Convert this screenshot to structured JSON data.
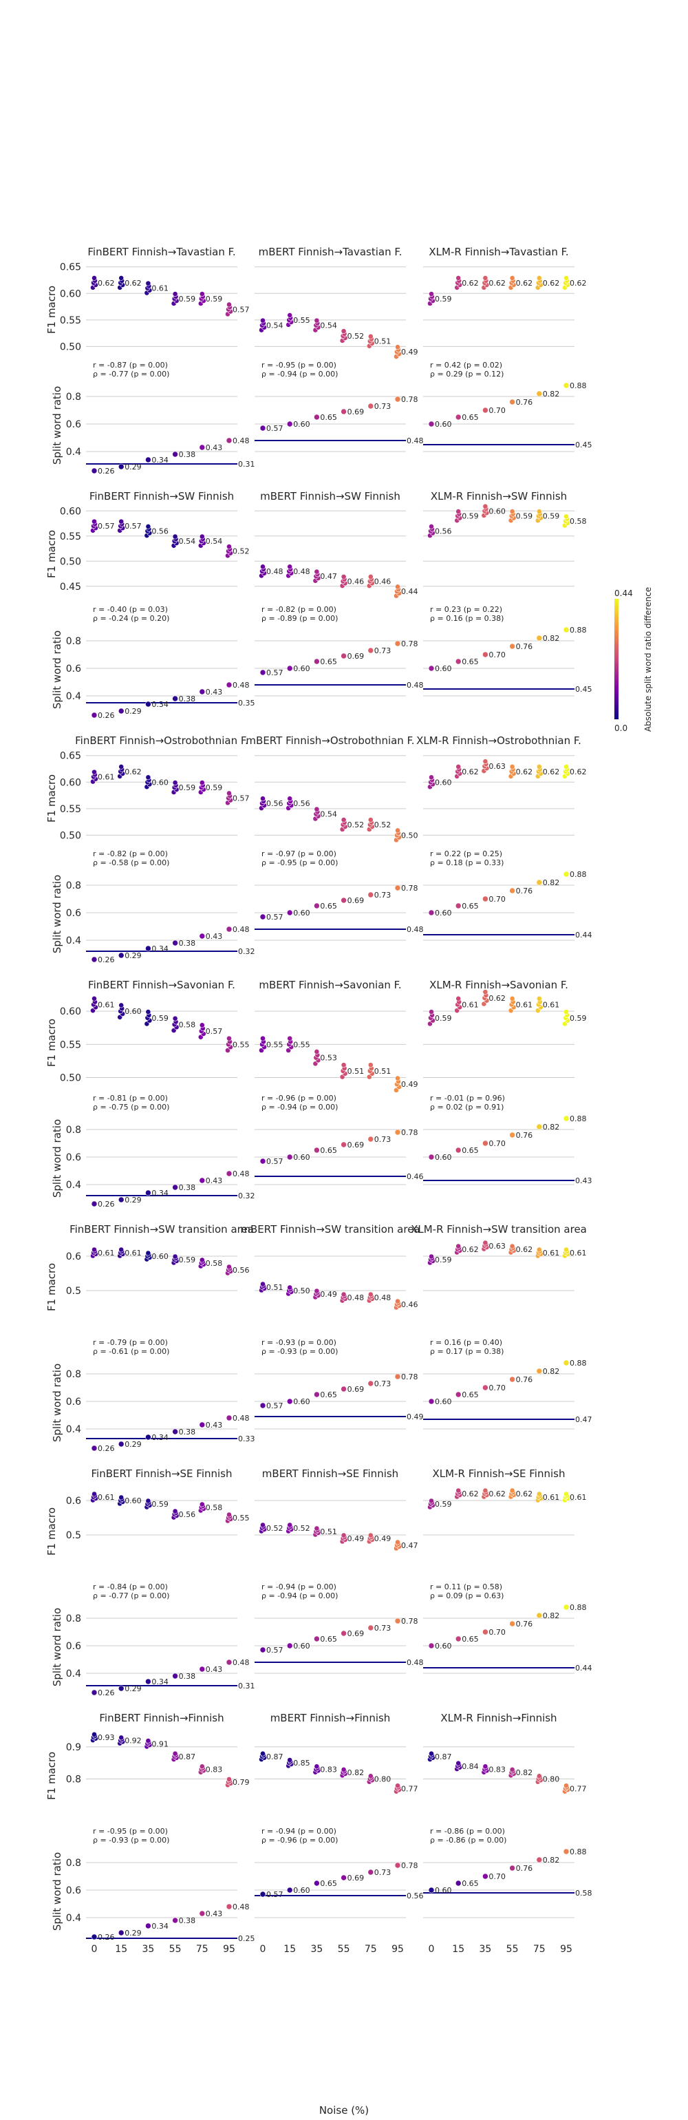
{
  "figure": {
    "xlabel": "Noise (%)",
    "colorbar": {
      "label": "Absolute split word ratio difference",
      "min_label": "0.0",
      "max_label": "0.44",
      "min": 0.0,
      "max": 0.44
    },
    "colors": {
      "grid": "#cccccc",
      "baseline": "#0d0887",
      "text": "#262626"
    }
  },
  "chart_data": {
    "type": "scatter",
    "x": [
      0,
      15,
      35,
      55,
      75,
      95
    ],
    "x_tick_labels": [
      "0",
      "15",
      "35",
      "55",
      "75",
      "95"
    ],
    "y_labels": {
      "f1": "F1 macro",
      "split": "Split word ratio"
    },
    "split_ylim": [
      0.28,
      0.9
    ],
    "split_yticks": [
      0.4,
      0.6,
      0.8
    ],
    "split_ytick_labels": [
      "0.4",
      "0.6",
      "0.8"
    ],
    "models": [
      "FinBERT",
      "mBERT",
      "XLM-R"
    ],
    "split_values": {
      "FinBERT": [
        0.26,
        0.29,
        0.34,
        0.38,
        0.43,
        0.48
      ],
      "mBERT": [
        0.57,
        0.6,
        0.65,
        0.69,
        0.73,
        0.78
      ],
      "XLM-R": [
        0.6,
        0.65,
        0.7,
        0.76,
        0.82,
        0.88
      ]
    },
    "split_labels": {
      "FinBERT": [
        "0.26",
        "0.29",
        "0.34",
        "0.38",
        "0.43",
        "0.48"
      ],
      "mBERT": [
        "0.57",
        "0.60",
        "0.65",
        "0.69",
        "0.73",
        "0.78"
      ],
      "XLM-R": [
        "0.60",
        "0.65",
        "0.70",
        "0.76",
        "0.82",
        "0.88"
      ]
    },
    "rows": [
      {
        "f1_ylim": [
          0.485,
          0.66
        ],
        "f1_yticks": [
          0.5,
          0.55,
          0.6,
          0.65
        ],
        "f1_ytick_labels": [
          "0.50",
          "0.55",
          "0.60",
          "0.65"
        ],
        "panels": [
          {
            "title": "FinBERT Finnish→Tavastian F.",
            "f1": [
              0.62,
              0.62,
              0.61,
              0.59,
              0.59,
              0.57
            ],
            "f1_labels": [
              "0.62",
              "0.62",
              "0.61",
              "0.59",
              "0.59",
              "0.57"
            ],
            "stats": [
              "r = -0.87 (p = 0.00)",
              "ρ = -0.77 (p = 0.00)"
            ],
            "baseline": 0.31,
            "baseline_label": "0.31"
          },
          {
            "title": "mBERT Finnish→Tavastian F.",
            "f1": [
              0.54,
              0.55,
              0.54,
              0.52,
              0.51,
              0.49
            ],
            "f1_labels": [
              "0.54",
              "0.55",
              "0.54",
              "0.52",
              "0.51",
              "0.49"
            ],
            "stats": [
              "r = -0.95 (p = 0.00)",
              "ρ = -0.94 (p = 0.00)"
            ],
            "baseline": 0.48,
            "baseline_label": "0.48"
          },
          {
            "title": "XLM-R Finnish→Tavastian F.",
            "f1": [
              0.59,
              0.62,
              0.62,
              0.62,
              0.62,
              0.62
            ],
            "f1_labels": [
              "0.59",
              "0.62",
              "0.62",
              "0.62",
              "0.62",
              "0.62"
            ],
            "stats": [
              "r = 0.42 (p = 0.02)",
              "ρ = 0.29 (p = 0.12)"
            ],
            "baseline": 0.45,
            "baseline_label": "0.45"
          }
        ]
      },
      {
        "f1_ylim": [
          0.425,
          0.61
        ],
        "f1_yticks": [
          0.45,
          0.5,
          0.55,
          0.6
        ],
        "f1_ytick_labels": [
          "0.45",
          "0.50",
          "0.55",
          "0.60"
        ],
        "panels": [
          {
            "title": "FinBERT Finnish→SW Finnish",
            "f1": [
              0.57,
              0.57,
              0.56,
              0.54,
              0.54,
              0.52
            ],
            "f1_labels": [
              "0.57",
              "0.57",
              "0.56",
              "0.54",
              "0.54",
              "0.52"
            ],
            "stats": [
              "r = -0.40 (p = 0.03)",
              "ρ = -0.24 (p = 0.20)"
            ],
            "baseline": 0.35,
            "baseline_label": "0.35"
          },
          {
            "title": "mBERT Finnish→SW Finnish",
            "f1": [
              0.48,
              0.48,
              0.47,
              0.46,
              0.46,
              0.44
            ],
            "f1_labels": [
              "0.48",
              "0.48",
              "0.47",
              "0.46",
              "0.46",
              "0.44"
            ],
            "stats": [
              "r = -0.82 (p = 0.00)",
              "ρ = -0.89 (p = 0.00)"
            ],
            "baseline": 0.48,
            "baseline_label": "0.48"
          },
          {
            "title": "XLM-R Finnish→SW Finnish",
            "f1": [
              0.56,
              0.59,
              0.6,
              0.59,
              0.59,
              0.58
            ],
            "f1_labels": [
              "0.56",
              "0.59",
              "0.60",
              "0.59",
              "0.59",
              "0.58"
            ],
            "stats": [
              "r = 0.23 (p = 0.22)",
              "ρ = 0.16 (p = 0.38)"
            ],
            "baseline": 0.45,
            "baseline_label": "0.45"
          }
        ]
      },
      {
        "f1_ylim": [
          0.485,
          0.66
        ],
        "f1_yticks": [
          0.5,
          0.55,
          0.6,
          0.65
        ],
        "f1_ytick_labels": [
          "0.50",
          "0.55",
          "0.60",
          "0.65"
        ],
        "panels": [
          {
            "title": "FinBERT Finnish→Ostrobothnian F.",
            "f1": [
              0.61,
              0.62,
              0.6,
              0.59,
              0.59,
              0.57
            ],
            "f1_labels": [
              "0.61",
              "0.62",
              "0.60",
              "0.59",
              "0.59",
              "0.57"
            ],
            "stats": [
              "r = -0.82 (p = 0.00)",
              "ρ = -0.58 (p = 0.00)"
            ],
            "baseline": 0.32,
            "baseline_label": "0.32"
          },
          {
            "title": "mBERT Finnish→Ostrobothnian F.",
            "f1": [
              0.56,
              0.56,
              0.54,
              0.52,
              0.52,
              0.5
            ],
            "f1_labels": [
              "0.56",
              "0.56",
              "0.54",
              "0.52",
              "0.52",
              "0.50"
            ],
            "stats": [
              "r = -0.97 (p = 0.00)",
              "ρ = -0.95 (p = 0.00)"
            ],
            "baseline": 0.48,
            "baseline_label": "0.48"
          },
          {
            "title": "XLM-R Finnish→Ostrobothnian F.",
            "f1": [
              0.6,
              0.62,
              0.63,
              0.62,
              0.62,
              0.62
            ],
            "f1_labels": [
              "0.60",
              "0.62",
              "0.63",
              "0.62",
              "0.62",
              "0.62"
            ],
            "stats": [
              "r = 0.22 (p = 0.25)",
              "ρ = 0.18 (p = 0.33)"
            ],
            "baseline": 0.44,
            "baseline_label": "0.44"
          }
        ]
      },
      {
        "f1_ylim": [
          0.485,
          0.625
        ],
        "f1_yticks": [
          0.5,
          0.55,
          0.6
        ],
        "f1_ytick_labels": [
          "0.50",
          "0.55",
          "0.60"
        ],
        "panels": [
          {
            "title": "FinBERT Finnish→Savonian F.",
            "f1": [
              0.61,
              0.6,
              0.59,
              0.58,
              0.57,
              0.55
            ],
            "f1_labels": [
              "0.61",
              "0.60",
              "0.59",
              "0.58",
              "0.57",
              "0.55"
            ],
            "stats": [
              "r = -0.81 (p = 0.00)",
              "ρ = -0.75 (p = 0.00)"
            ],
            "baseline": 0.32,
            "baseline_label": "0.32"
          },
          {
            "title": "mBERT Finnish→Savonian F.",
            "f1": [
              0.55,
              0.55,
              0.53,
              0.51,
              0.51,
              0.49
            ],
            "f1_labels": [
              "0.55",
              "0.55",
              "0.53",
              "0.51",
              "0.51",
              "0.49"
            ],
            "stats": [
              "r = -0.96 (p = 0.00)",
              "ρ = -0.94 (p = 0.00)"
            ],
            "baseline": 0.46,
            "baseline_label": "0.46"
          },
          {
            "title": "XLM-R Finnish→Savonian F.",
            "f1": [
              0.59,
              0.61,
              0.62,
              0.61,
              0.61,
              0.59
            ],
            "f1_labels": [
              "0.59",
              "0.61",
              "0.62",
              "0.61",
              "0.61",
              "0.59"
            ],
            "stats": [
              "r = -0.01 (p = 0.96)",
              "ρ = 0.02 (p = 0.91)"
            ],
            "baseline": 0.43,
            "baseline_label": "0.43"
          }
        ]
      },
      {
        "f1_ylim": [
          0.38,
          0.65
        ],
        "f1_yticks": [
          0.5,
          0.6
        ],
        "f1_ytick_labels": [
          "0.5",
          "0.6"
        ],
        "panels": [
          {
            "title": "FinBERT Finnish→SW transition area",
            "f1": [
              0.61,
              0.61,
              0.6,
              0.59,
              0.58,
              0.56
            ],
            "f1_labels": [
              "0.61",
              "0.61",
              "0.60",
              "0.59",
              "0.58",
              "0.56"
            ],
            "stats": [
              "r = -0.79 (p = 0.00)",
              "ρ = -0.61 (p = 0.00)"
            ],
            "baseline": 0.33,
            "baseline_label": "0.33"
          },
          {
            "title": "mBERT Finnish→SW transition area",
            "f1": [
              0.51,
              0.5,
              0.49,
              0.48,
              0.48,
              0.46
            ],
            "f1_labels": [
              "0.51",
              "0.50",
              "0.49",
              "0.48",
              "0.48",
              "0.46"
            ],
            "stats": [
              "r = -0.93 (p = 0.00)",
              "ρ = -0.93 (p = 0.00)"
            ],
            "baseline": 0.49,
            "baseline_label": "0.49"
          },
          {
            "title": "XLM-R Finnish→SW transition area",
            "f1": [
              0.59,
              0.62,
              0.63,
              0.62,
              0.61,
              0.61
            ],
            "f1_labels": [
              "0.59",
              "0.62",
              "0.63",
              "0.62",
              "0.61",
              "0.61"
            ],
            "stats": [
              "r = 0.16 (p = 0.40)",
              "ρ = 0.17 (p = 0.38)"
            ],
            "baseline": 0.47,
            "baseline_label": "0.47"
          }
        ]
      },
      {
        "f1_ylim": [
          0.38,
          0.65
        ],
        "f1_yticks": [
          0.5,
          0.6
        ],
        "f1_ytick_labels": [
          "0.5",
          "0.6"
        ],
        "panels": [
          {
            "title": "FinBERT Finnish→SE Finnish",
            "f1": [
              0.61,
              0.6,
              0.59,
              0.56,
              0.58,
              0.55
            ],
            "f1_labels": [
              "0.61",
              "0.60",
              "0.59",
              "0.56",
              "0.58",
              "0.55"
            ],
            "stats": [
              "r = -0.84 (p = 0.00)",
              "ρ = -0.77 (p = 0.00)"
            ],
            "baseline": 0.31,
            "baseline_label": "0.31"
          },
          {
            "title": "mBERT Finnish→SE Finnish",
            "f1": [
              0.52,
              0.52,
              0.51,
              0.49,
              0.49,
              0.47
            ],
            "f1_labels": [
              "0.52",
              "0.52",
              "0.51",
              "0.49",
              "0.49",
              "0.47"
            ],
            "stats": [
              "r = -0.94 (p = 0.00)",
              "ρ = -0.94 (p = 0.00)"
            ],
            "baseline": 0.48,
            "baseline_label": "0.48"
          },
          {
            "title": "XLM-R Finnish→SE Finnish",
            "f1": [
              0.59,
              0.62,
              0.62,
              0.62,
              0.61,
              0.61
            ],
            "f1_labels": [
              "0.59",
              "0.62",
              "0.62",
              "0.62",
              "0.61",
              "0.61"
            ],
            "stats": [
              "r = 0.11 (p = 0.58)",
              "ρ = 0.09 (p = 0.63)"
            ],
            "baseline": 0.44,
            "baseline_label": "0.44"
          }
        ]
      },
      {
        "f1_ylim": [
          0.67,
          0.96
        ],
        "f1_yticks": [
          0.8,
          0.9
        ],
        "f1_ytick_labels": [
          "0.8",
          "0.9"
        ],
        "panels": [
          {
            "title": "FinBERT Finnish→Finnish",
            "f1": [
              0.93,
              0.92,
              0.91,
              0.87,
              0.83,
              0.79
            ],
            "f1_labels": [
              "0.93",
              "0.92",
              "0.91",
              "0.87",
              "0.83",
              "0.79"
            ],
            "stats": [
              "r = -0.95 (p = 0.00)",
              "ρ = -0.93 (p = 0.00)"
            ],
            "baseline": 0.25,
            "baseline_label": "0.25"
          },
          {
            "title": "mBERT Finnish→Finnish",
            "f1": [
              0.87,
              0.85,
              0.83,
              0.82,
              0.8,
              0.77
            ],
            "f1_labels": [
              "0.87",
              "0.85",
              "0.83",
              "0.82",
              "0.80",
              "0.77"
            ],
            "stats": [
              "r = -0.94 (p = 0.00)",
              "ρ = -0.96 (p = 0.00)"
            ],
            "baseline": 0.56,
            "baseline_label": "0.56"
          },
          {
            "title": "XLM-R Finnish→Finnish",
            "f1": [
              0.87,
              0.84,
              0.83,
              0.82,
              0.8,
              0.77
            ],
            "f1_labels": [
              "0.87",
              "0.84",
              "0.83",
              "0.82",
              "0.80",
              "0.77"
            ],
            "stats": [
              "r = -0.86 (p = 0.00)",
              "ρ = -0.86 (p = 0.00)"
            ],
            "baseline": 0.58,
            "baseline_label": "0.58"
          }
        ]
      }
    ]
  }
}
